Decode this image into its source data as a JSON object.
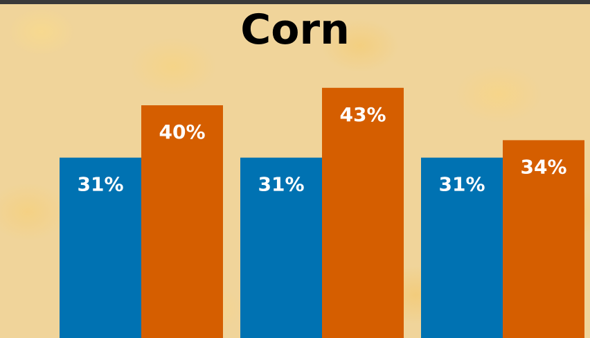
{
  "chart_data": {
    "type": "bar",
    "title": "Corn",
    "categories": [
      "",
      "",
      ""
    ],
    "series": [
      {
        "values": [
          31,
          31,
          31
        ],
        "labels": [
          "31%",
          "31%",
          "31%"
        ],
        "color": "#0072b2"
      },
      {
        "values": [
          40,
          43,
          34
        ],
        "labels": [
          "40%",
          "43%",
          "34%"
        ],
        "color": "#d55e00"
      }
    ],
    "xlabel": "",
    "ylabel": "",
    "grid": false,
    "legend": "none"
  }
}
